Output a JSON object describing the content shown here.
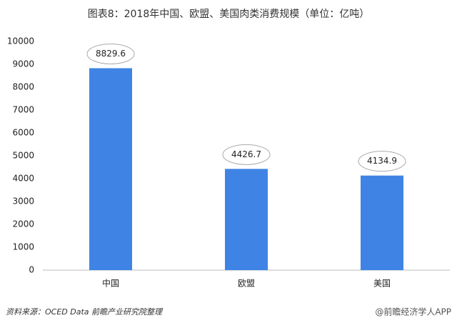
{
  "chart_data": {
    "type": "bar",
    "title": "图表8：2018年中国、欧盟、美国肉类消费规模（单位：亿吨）",
    "categories": [
      "中国",
      "欧盟",
      "美国"
    ],
    "values": [
      8829.6,
      4426.7,
      4134.9
    ],
    "color": "#3f84e5",
    "ylim": [
      0,
      10000
    ],
    "yticks": [
      0,
      1000,
      2000,
      3000,
      4000,
      5000,
      6000,
      7000,
      8000,
      9000,
      10000
    ],
    "grid": false,
    "source": "资料来源：OCED Data 前瞻产业研究院整理",
    "watermark": "@前瞻经济学人APP"
  }
}
